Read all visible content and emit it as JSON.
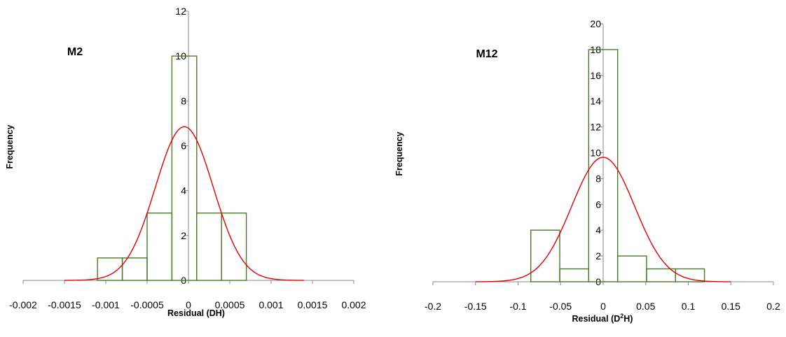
{
  "chart_data": [
    {
      "type": "bar",
      "title": "M2",
      "xlabel": "Residual (DH)",
      "ylabel": "Frequency",
      "xlim": [
        -0.002,
        0.002
      ],
      "ylim": [
        0,
        12
      ],
      "xticks": [
        -0.002,
        -0.0015,
        -0.001,
        -0.0005,
        0,
        0.0005,
        0.001,
        0.0015,
        0.002
      ],
      "xtick_labels": [
        "-0.002",
        "-0.0015",
        "-0.001",
        "-0.0005",
        "0",
        "0.0005",
        "0.001",
        "0.0015",
        "0.002"
      ],
      "yticks": [
        0,
        2,
        4,
        6,
        8,
        10,
        12
      ],
      "ytick_labels": [
        "0",
        "2",
        "4",
        "6",
        "8",
        "10",
        "12"
      ],
      "bins": [
        {
          "x0": -0.0011,
          "x1": -0.0008,
          "value": 1
        },
        {
          "x0": -0.0008,
          "x1": -0.0005,
          "value": 1
        },
        {
          "x0": -0.0005,
          "x1": -0.0002,
          "value": 3
        },
        {
          "x0": -0.0002,
          "x1": 0.0001,
          "value": 10
        },
        {
          "x0": 0.0001,
          "x1": 0.0004,
          "value": 3
        },
        {
          "x0": 0.0004,
          "x1": 0.0007,
          "value": 3
        }
      ],
      "normal_curve": {
        "mean": -5e-05,
        "sd": 0.00035,
        "peak": 6.85,
        "x_range": [
          -0.0015,
          0.0014
        ]
      },
      "grid": false,
      "colors": {
        "bar_stroke": "#4a7a2a",
        "curve": "#e00000",
        "axis": "#888888"
      }
    },
    {
      "type": "bar",
      "title": "M12",
      "xlabel": "Residual (D²H)",
      "ylabel": "Frequency",
      "xlim": [
        -0.2,
        0.2
      ],
      "ylim": [
        0,
        20
      ],
      "xticks": [
        -0.2,
        -0.15,
        -0.1,
        -0.05,
        0,
        0.05,
        0.1,
        0.15,
        0.2
      ],
      "xtick_labels": [
        "-0.2",
        "-0.15",
        "-0.1",
        "-0.05",
        "0",
        "0.05",
        "0.1",
        "0.15",
        "0.2"
      ],
      "yticks": [
        0,
        2,
        4,
        6,
        8,
        10,
        12,
        14,
        16,
        18,
        20
      ],
      "ytick_labels": [
        "0",
        "2",
        "4",
        "6",
        "8",
        "10",
        "12",
        "14",
        "16",
        "18",
        "20"
      ],
      "bins": [
        {
          "x0": -0.085,
          "x1": -0.051,
          "value": 4
        },
        {
          "x0": -0.051,
          "x1": -0.017,
          "value": 1
        },
        {
          "x0": -0.017,
          "x1": 0.017,
          "value": 18
        },
        {
          "x0": 0.017,
          "x1": 0.051,
          "value": 2
        },
        {
          "x0": 0.051,
          "x1": 0.085,
          "value": 1
        },
        {
          "x0": 0.085,
          "x1": 0.119,
          "value": 1
        }
      ],
      "normal_curve": {
        "mean": 0.0,
        "sd": 0.037,
        "peak": 9.65,
        "x_range": [
          -0.15,
          0.15
        ]
      },
      "grid": false,
      "colors": {
        "bar_stroke": "#4a7a2a",
        "curve": "#e00000",
        "axis": "#888888"
      }
    }
  ]
}
